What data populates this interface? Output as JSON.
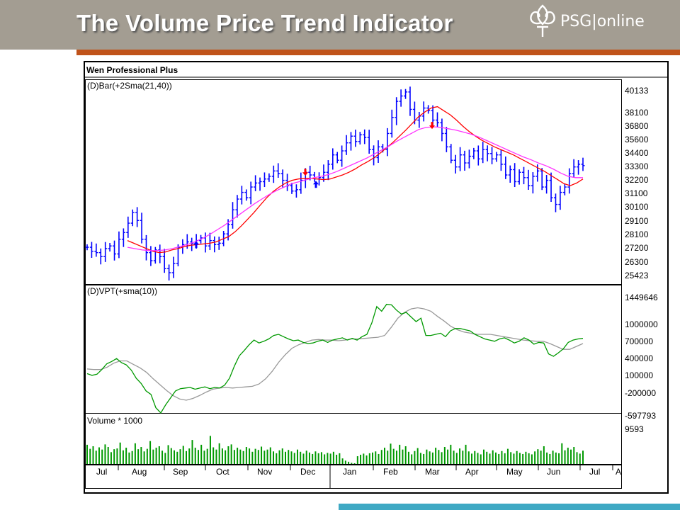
{
  "slide": {
    "title": "The Volume Price Trend Indicator",
    "logo_text": "PSG|online",
    "colors": {
      "header_bg": "#a39d92",
      "accent": "#c0531a",
      "bottom_bar": "#3fa9c4"
    }
  },
  "chart_data": [
    {
      "type": "bar",
      "window_title": "Wen Professional Plus",
      "label": "(D)Bar(+2Sma(21,40))",
      "yticks": [
        40133,
        38100,
        36800,
        35600,
        34400,
        33300,
        32200,
        31100,
        30100,
        29100,
        28100,
        27200,
        26300,
        25423
      ],
      "ylim": [
        25423,
        40133
      ],
      "series_colors": {
        "price": "#0000ff",
        "sma21": "#ff0000",
        "sma40": "#ff33ff"
      },
      "price_close": [
        27800,
        27500,
        27400,
        27100,
        27700,
        27900,
        27300,
        28400,
        28900,
        29600,
        30400,
        29800,
        28400,
        27400,
        26800,
        27600,
        27100,
        26200,
        25900,
        26600,
        27800,
        28000,
        28200,
        28100,
        28300,
        28500,
        27900,
        28300,
        28000,
        28100,
        28800,
        29500,
        30600,
        31400,
        31900,
        31500,
        32300,
        32600,
        32700,
        32900,
        33100,
        33500,
        33300,
        32800,
        32400,
        32000,
        32100,
        32800,
        33400,
        33200,
        32900,
        33000,
        33400,
        34000,
        34700,
        34300,
        35000,
        35600,
        36100,
        35700,
        36200,
        36000,
        35100,
        34500,
        35300,
        35100,
        36300,
        37500,
        38700,
        39100,
        39400,
        38100,
        37300,
        37600,
        38200,
        38000,
        37300,
        37100,
        36300,
        35300,
        34300,
        33800,
        34700,
        34100,
        34600,
        35000,
        34400,
        35100,
        34800,
        34400,
        34700,
        34000,
        33200,
        33600,
        32700,
        33400,
        33000,
        32400,
        33100,
        33500,
        32300,
        32800,
        31500,
        31000,
        31900,
        32300,
        33300,
        33800,
        34000,
        33900
      ],
      "sma21": [
        28300,
        28100,
        27900,
        27700,
        27500,
        27400,
        27450,
        27600,
        27700,
        27850,
        27950,
        28000,
        28050,
        28100,
        28200,
        28400,
        28600,
        28950,
        29400,
        29900,
        30400,
        30950,
        31500,
        31950,
        32300,
        32600,
        32800,
        32900,
        32950,
        32950,
        32900,
        32850,
        32900,
        33050,
        33200,
        33400,
        33650,
        33950,
        34200,
        34500,
        34850,
        35250,
        35650,
        36100,
        36550,
        37050,
        37550,
        37900,
        38200,
        38300,
        38000,
        37700,
        37300,
        36850,
        36450,
        36100,
        35800,
        35550,
        35300,
        35100,
        34900,
        34700,
        34450,
        34200,
        33950,
        33700,
        33450,
        33150,
        32850,
        32550,
        32400,
        32600,
        32900
      ],
      "sma40": [
        27800,
        27700,
        27600,
        27550,
        27550,
        27600,
        27700,
        27850,
        28000,
        28200,
        28450,
        28750,
        29100,
        29450,
        29850,
        30250,
        30650,
        31050,
        31400,
        31750,
        32050,
        32300,
        32550,
        32700,
        32850,
        33000,
        33100,
        33250,
        33450,
        33700,
        33950,
        34200,
        34450,
        34750,
        35050,
        35350,
        35700,
        36000,
        36300,
        36600,
        36750,
        36800,
        36750,
        36650,
        36550,
        36400,
        36250,
        36050,
        35800,
        35550,
        35300,
        35050,
        34800,
        34550,
        34350,
        34100,
        33900,
        33650,
        33350,
        33100,
        33000,
        33000
      ]
    },
    {
      "type": "line",
      "label": "(D)VPT(+sma(10))",
      "yticks": [
        1449646,
        1000000,
        700000,
        400000,
        100000,
        -200000,
        -597793
      ],
      "ylim": [
        -597793,
        1449646
      ],
      "series_colors": {
        "vpt": "#009900",
        "sma10": "#999999"
      },
      "vpt": [
        120000,
        90000,
        110000,
        190000,
        290000,
        330000,
        380000,
        310000,
        270000,
        180000,
        40000,
        -50000,
        -180000,
        -240000,
        -470000,
        -560000,
        -420000,
        -300000,
        -180000,
        -140000,
        -130000,
        -120000,
        -150000,
        -130000,
        -110000,
        -140000,
        -120000,
        -130000,
        -80000,
        40000,
        250000,
        430000,
        520000,
        620000,
        700000,
        650000,
        680000,
        720000,
        780000,
        800000,
        760000,
        720000,
        690000,
        700000,
        660000,
        640000,
        650000,
        680000,
        700000,
        660000,
        700000,
        720000,
        740000,
        700000,
        730000,
        700000,
        760000,
        800000,
        1000000,
        1280000,
        1200000,
        1320000,
        1310000,
        1220000,
        1150000,
        1180000,
        1100000,
        1020000,
        1080000,
        780000,
        780000,
        800000,
        820000,
        760000,
        860000,
        900000,
        900000,
        880000,
        860000,
        800000,
        760000,
        720000,
        700000,
        680000,
        720000,
        740000,
        700000,
        650000,
        680000,
        740000,
        700000,
        630000,
        660000,
        650000,
        460000,
        420000,
        480000,
        550000,
        660000,
        700000,
        720000,
        730000
      ],
      "sma10": [
        200000,
        190000,
        190000,
        230000,
        300000,
        340000,
        340000,
        280000,
        220000,
        140000,
        30000,
        -70000,
        -170000,
        -260000,
        -320000,
        -340000,
        -310000,
        -260000,
        -200000,
        -150000,
        -130000,
        -120000,
        -130000,
        -120000,
        -110000,
        -100000,
        -60000,
        30000,
        160000,
        320000,
        450000,
        560000,
        620000,
        660000,
        700000,
        710000,
        700000,
        700000,
        690000,
        700000,
        720000,
        720000,
        730000,
        740000,
        750000,
        780000,
        920000,
        1080000,
        1180000,
        1240000,
        1260000,
        1240000,
        1200000,
        1110000,
        1030000,
        940000,
        880000,
        840000,
        820000,
        800000,
        800000,
        800000,
        780000,
        760000,
        740000,
        720000,
        700000,
        690000,
        680000,
        680000,
        640000,
        590000,
        540000,
        540000,
        590000,
        640000
      ]
    },
    {
      "type": "bar",
      "label": "Volume * 1000",
      "yticks": [
        9593
      ],
      "series_colors": {
        "volume": "#009900"
      },
      "values": [
        5200,
        4100,
        4800,
        3600,
        4500,
        3900,
        5300,
        4600,
        3200,
        4000,
        4200,
        5800,
        3700,
        4400,
        3100,
        3500,
        5600,
        4000,
        4600,
        3400,
        4100,
        6200,
        3900,
        4400,
        4800,
        3600,
        3000,
        5100,
        4300,
        3700,
        3300,
        4000,
        4900,
        3500,
        4200,
        6500,
        4400,
        3800,
        5200,
        3600,
        4100,
        7600,
        4500,
        3900,
        5600,
        4200,
        3700,
        4800,
        5300,
        3800,
        4400,
        3900,
        3500,
        4600,
        4200,
        3300,
        4100,
        3800,
        4700,
        3600,
        3900,
        4500,
        3400,
        2900,
        3700,
        4200,
        3300,
        3800,
        3400,
        3000,
        3900,
        3300,
        2800,
        3600,
        3100,
        2700,
        3400,
        2900,
        3200,
        2600,
        3000,
        2800,
        3300,
        2500,
        2900,
        1500,
        900,
        600,
        300,
        200,
        2100,
        2500,
        2800,
        2300,
        2900,
        3100,
        3400,
        2700,
        3800,
        4400,
        3600,
        5500,
        4100,
        3600,
        5200,
        3900,
        4800,
        3300,
        2600,
        3500,
        4300,
        3000,
        2700,
        3900,
        3400,
        3100,
        4400,
        3800,
        3200,
        4600,
        3900,
        5200,
        3600,
        3000,
        4200,
        3600,
        5200,
        3400,
        2800,
        3500,
        3000,
        2600,
        3900,
        3300,
        2800,
        3700,
        3100,
        2700,
        3500,
        2900,
        4100,
        3200,
        2800,
        3500,
        3000,
        2700,
        3300,
        2900,
        2600,
        3400,
        4000,
        3600,
        4800,
        3100,
        2700,
        3600,
        3100,
        2900,
        5600,
        3700,
        4400,
        3900,
        4600,
        3200,
        2800,
        3600
      ]
    }
  ],
  "x_axis": {
    "labels": [
      "Jul",
      "Aug",
      "Sep",
      "Oct",
      "Nov",
      "Dec",
      "Jan",
      "Feb",
      "Mar",
      "Apr",
      "May",
      "Jun",
      "Jul",
      "A"
    ]
  },
  "signals": [
    {
      "type": "buy",
      "color": "#0000ff"
    },
    {
      "type": "sell",
      "color": "#ff0000"
    },
    {
      "type": "buy",
      "color": "#0000ff"
    },
    {
      "type": "sell",
      "color": "#ff0000"
    }
  ]
}
